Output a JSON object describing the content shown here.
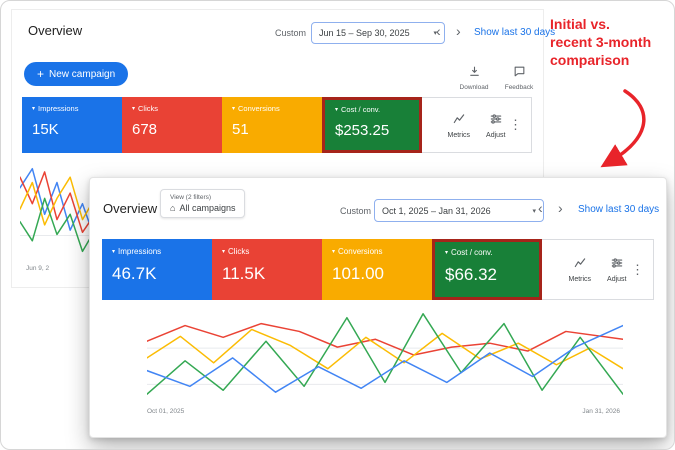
{
  "icons": {
    "caret_down": "▾",
    "chevron_left": "‹",
    "chevron_right": "›",
    "more_vertical": "⋮",
    "home": "⌂",
    "plus": "+"
  },
  "annotation": {
    "color": "#e8242a",
    "lines": [
      "Initial vs.",
      "recent 3-month",
      "comparison"
    ]
  },
  "back_panel": {
    "title": "Overview",
    "date_mode_label": "Custom",
    "date_range": "Jun 15 – Sep 30, 2025",
    "show_last_label": "Show last 30 days",
    "new_campaign_label": "New campaign",
    "download_label": "Download",
    "feedback_label": "Feedback",
    "metrics_label": "Metrics",
    "adjust_label": "Adjust",
    "axis_start": "Jun 9, 2",
    "cards": [
      {
        "label": "Impressions",
        "value": "15K",
        "color": "#1a73e8",
        "highlight": false
      },
      {
        "label": "Clicks",
        "value": "678",
        "color": "#e94235",
        "highlight": false
      },
      {
        "label": "Conversions",
        "value": "51",
        "color": "#f9ab00",
        "highlight": false
      },
      {
        "label": "Cost / conv.",
        "value": "$253.25",
        "color": "#188038",
        "highlight": true
      }
    ]
  },
  "front_panel": {
    "title": "Overview",
    "view_chip_caption": "View (2 filters)",
    "view_chip_label": "All campaigns",
    "date_mode_label": "Custom",
    "date_range": "Oct 1, 2025 – Jan 31, 2026",
    "show_last_label": "Show last 30 days",
    "metrics_label": "Metrics",
    "adjust_label": "Adjust",
    "axis_start": "Oct 01, 2025",
    "axis_end": "Jan 31, 2026",
    "cards": [
      {
        "label": "Impressions",
        "value": "46.7K",
        "color": "#1a73e8",
        "highlight": false
      },
      {
        "label": "Clicks",
        "value": "11.5K",
        "color": "#e94235",
        "highlight": false
      },
      {
        "label": "Conversions",
        "value": "101.00",
        "color": "#f9ab00",
        "highlight": false
      },
      {
        "label": "Cost / conv.",
        "value": "$66.32",
        "color": "#188038",
        "highlight": true
      }
    ]
  },
  "chart_data": [
    {
      "id": "back",
      "type": "line",
      "x_start_label": "Jun 9, 2",
      "gridlines_y": [
        75
      ],
      "series": [
        {
          "name": "Impressions",
          "color": "#4285f4",
          "points": [
            [
              0,
              30
            ],
            [
              14,
              12
            ],
            [
              28,
              55
            ],
            [
              42,
              25
            ],
            [
              57,
              70
            ],
            [
              71,
              45
            ],
            [
              85,
              78
            ],
            [
              100,
              60
            ]
          ]
        },
        {
          "name": "Clicks",
          "color": "#ea4335",
          "points": [
            [
              0,
              20
            ],
            [
              14,
              45
            ],
            [
              28,
              15
            ],
            [
              42,
              60
            ],
            [
              57,
              35
            ],
            [
              71,
              72
            ],
            [
              85,
              55
            ],
            [
              100,
              85
            ]
          ]
        },
        {
          "name": "Conversions",
          "color": "#fbbc04",
          "points": [
            [
              0,
              50
            ],
            [
              14,
              25
            ],
            [
              28,
              65
            ],
            [
              42,
              40
            ],
            [
              57,
              20
            ],
            [
              71,
              60
            ],
            [
              85,
              40
            ],
            [
              100,
              70
            ]
          ]
        },
        {
          "name": "Cost / conv.",
          "color": "#34a853",
          "points": [
            [
              0,
              62
            ],
            [
              14,
              80
            ],
            [
              28,
              40
            ],
            [
              42,
              74
            ],
            [
              57,
              55
            ],
            [
              71,
              90
            ],
            [
              85,
              70
            ],
            [
              100,
              95
            ]
          ]
        }
      ]
    },
    {
      "id": "front",
      "type": "line",
      "x_start_label": "Oct 01, 2025",
      "x_end_label": "Jan 31, 2026",
      "gridlines_y": [
        45,
        82
      ],
      "series": [
        {
          "name": "Cost / conv.",
          "color": "#ea4335",
          "points": [
            [
              0,
              38
            ],
            [
              8,
              22
            ],
            [
              16,
              34
            ],
            [
              24,
              20
            ],
            [
              32,
              28
            ],
            [
              40,
              44
            ],
            [
              48,
              36
            ],
            [
              56,
              52
            ],
            [
              64,
              44
            ],
            [
              72,
              40
            ],
            [
              80,
              48
            ],
            [
              88,
              28
            ],
            [
              100,
              36
            ]
          ]
        },
        {
          "name": "Conversions",
          "color": "#fbbc04",
          "points": [
            [
              0,
              55
            ],
            [
              7,
              33
            ],
            [
              14,
              60
            ],
            [
              22,
              26
            ],
            [
              30,
              42
            ],
            [
              38,
              66
            ],
            [
              46,
              34
            ],
            [
              54,
              60
            ],
            [
              62,
              30
            ],
            [
              70,
              56
            ],
            [
              78,
              40
            ],
            [
              86,
              62
            ],
            [
              93,
              45
            ],
            [
              100,
              66
            ]
          ]
        },
        {
          "name": "Clicks",
          "color": "#34a853",
          "points": [
            [
              0,
              92
            ],
            [
              8,
              58
            ],
            [
              16,
              88
            ],
            [
              25,
              38
            ],
            [
              33,
              84
            ],
            [
              42,
              14
            ],
            [
              50,
              80
            ],
            [
              58,
              10
            ],
            [
              66,
              70
            ],
            [
              75,
              20
            ],
            [
              83,
              88
            ],
            [
              91,
              34
            ],
            [
              100,
              92
            ]
          ]
        },
        {
          "name": "Impressions",
          "color": "#4285f4",
          "points": [
            [
              0,
              68
            ],
            [
              9,
              84
            ],
            [
              18,
              55
            ],
            [
              27,
              90
            ],
            [
              36,
              64
            ],
            [
              45,
              86
            ],
            [
              54,
              58
            ],
            [
              63,
              80
            ],
            [
              72,
              50
            ],
            [
              81,
              74
            ],
            [
              90,
              44
            ],
            [
              100,
              22
            ]
          ]
        }
      ]
    }
  ]
}
